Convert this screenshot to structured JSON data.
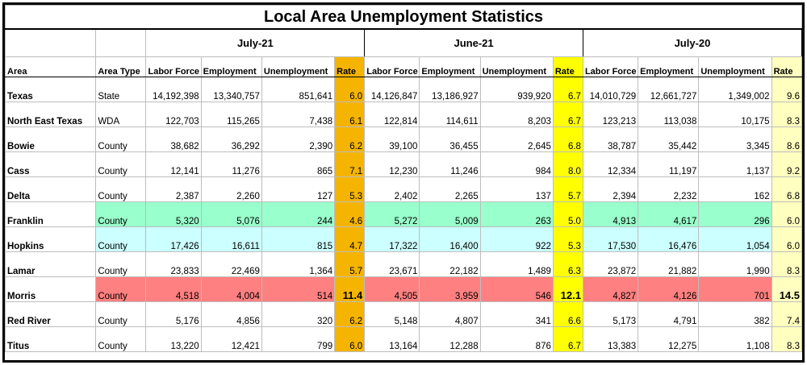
{
  "title": "Local Area Unemployment Statistics",
  "periods": [
    "July-21",
    "June-21",
    "July-20"
  ],
  "headers": {
    "area": "Area",
    "area_type": "Area Type",
    "labor_force": "Labor Force",
    "employment": "Employment",
    "unemployment": "Unemployment",
    "rate": "Rate"
  },
  "colors": {
    "rate_july21": "#f5b400",
    "rate_june21": "#ffff00",
    "rate_july20": "#ffffbf",
    "franklin_highlight": "#99ffcc",
    "hopkins_highlight": "#ccffff",
    "morris_highlight": "#ff8080"
  },
  "rows": [
    {
      "area": "Texas",
      "type": "State",
      "highlight": "",
      "cells": [
        [
          "14,192,398",
          "13,340,757",
          "851,641",
          "6.0"
        ],
        [
          "14,126,847",
          "13,186,927",
          "939,920",
          "6.7"
        ],
        [
          "14,010,729",
          "12,661,727",
          "1,349,002",
          "9.6"
        ]
      ]
    },
    {
      "area": "North East Texas",
      "type": "WDA",
      "highlight": "",
      "cells": [
        [
          "122,703",
          "115,265",
          "7,438",
          "6.1"
        ],
        [
          "122,814",
          "114,611",
          "8,203",
          "6.7"
        ],
        [
          "123,213",
          "113,038",
          "10,175",
          "8.3"
        ]
      ]
    },
    {
      "area": "Bowie",
      "type": "County",
      "highlight": "",
      "cells": [
        [
          "38,682",
          "36,292",
          "2,390",
          "6.2"
        ],
        [
          "39,100",
          "36,455",
          "2,645",
          "6.8"
        ],
        [
          "38,787",
          "35,442",
          "3,345",
          "8.6"
        ]
      ]
    },
    {
      "area": "Cass",
      "type": "County",
      "highlight": "",
      "cells": [
        [
          "12,141",
          "11,276",
          "865",
          "7.1"
        ],
        [
          "12,230",
          "11,246",
          "984",
          "8.0"
        ],
        [
          "12,334",
          "11,197",
          "1,137",
          "9.2"
        ]
      ]
    },
    {
      "area": "Delta",
      "type": "County",
      "highlight": "",
      "cells": [
        [
          "2,387",
          "2,260",
          "127",
          "5.3"
        ],
        [
          "2,402",
          "2,265",
          "137",
          "5.7"
        ],
        [
          "2,394",
          "2,232",
          "162",
          "6.8"
        ]
      ]
    },
    {
      "area": "Franklin",
      "type": "County",
      "highlight": "green",
      "cells": [
        [
          "5,320",
          "5,076",
          "244",
          "4.6"
        ],
        [
          "5,272",
          "5,009",
          "263",
          "5.0"
        ],
        [
          "4,913",
          "4,617",
          "296",
          "6.0"
        ]
      ]
    },
    {
      "area": "Hopkins",
      "type": "County",
      "highlight": "cyan",
      "cells": [
        [
          "17,426",
          "16,611",
          "815",
          "4.7"
        ],
        [
          "17,322",
          "16,400",
          "922",
          "5.3"
        ],
        [
          "17,530",
          "16,476",
          "1,054",
          "6.0"
        ]
      ]
    },
    {
      "area": "Lamar",
      "type": "County",
      "highlight": "",
      "cells": [
        [
          "23,833",
          "22,469",
          "1,364",
          "5.7"
        ],
        [
          "23,671",
          "22,182",
          "1,489",
          "6.3"
        ],
        [
          "23,872",
          "21,882",
          "1,990",
          "8.3"
        ]
      ]
    },
    {
      "area": "Morris",
      "type": "County",
      "highlight": "red",
      "cells": [
        [
          "4,518",
          "4,004",
          "514",
          "11.4"
        ],
        [
          "4,505",
          "3,959",
          "546",
          "12.1"
        ],
        [
          "4,827",
          "4,126",
          "701",
          "14.5"
        ]
      ]
    },
    {
      "area": "Red River",
      "type": "County",
      "highlight": "",
      "cells": [
        [
          "5,176",
          "4,856",
          "320",
          "6.2"
        ],
        [
          "5,148",
          "4,807",
          "341",
          "6.6"
        ],
        [
          "5,173",
          "4,791",
          "382",
          "7.4"
        ]
      ]
    },
    {
      "area": "Titus",
      "type": "County",
      "highlight": "",
      "cells": [
        [
          "13,220",
          "12,421",
          "799",
          "6.0"
        ],
        [
          "13,164",
          "12,288",
          "876",
          "6.7"
        ],
        [
          "13,383",
          "12,275",
          "1,108",
          "8.3"
        ]
      ]
    }
  ]
}
